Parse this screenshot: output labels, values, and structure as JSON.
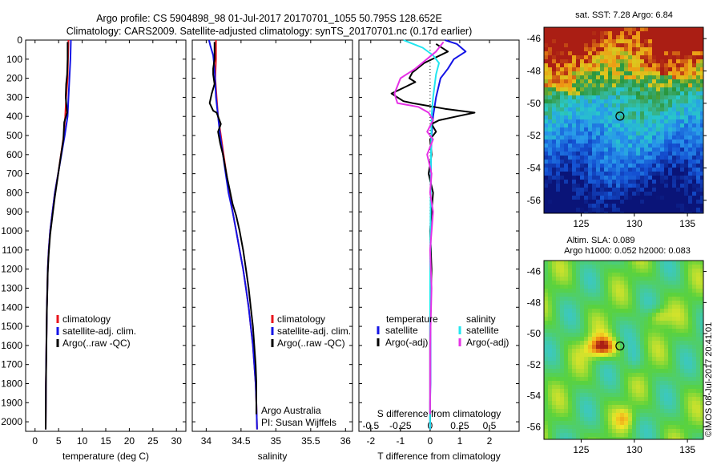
{
  "header": {
    "line1": "Argo profile: CS 5904898_98 01-Jul-2017 20170701_1055 50.795S 128.652E",
    "line2": "Climatology: CARS2009. Satellite-adjusted climatology: synTS_20170701.nc (0.17d earlier)"
  },
  "credit": "©IMOS 08-Jul-2017 20:41:01",
  "colors": {
    "climatology": "#e8141c",
    "satellite": "#1414e6",
    "argo": "#000000",
    "satellite_s": "#22e6f0",
    "argo_s": "#e632e6"
  },
  "chart_data": [
    {
      "type": "line",
      "name": "temperature-profile",
      "xlabel": "temperature (deg C)",
      "ylabel": "",
      "xlim": [
        -2,
        32
      ],
      "ylim": [
        2050,
        0
      ],
      "xticks": [
        0,
        5,
        10,
        15,
        20,
        25,
        30
      ],
      "yticks": [
        0,
        100,
        200,
        300,
        400,
        500,
        600,
        700,
        800,
        900,
        1000,
        1100,
        1200,
        1300,
        1400,
        1500,
        1600,
        1700,
        1800,
        1900,
        2000
      ],
      "legend": {
        "entries": [
          "climatology",
          "satellite-adj. clim.",
          "Argo(..raw -QC)"
        ],
        "placement": "lower-left"
      },
      "series": [
        {
          "name": "climatology",
          "color": "#e8141c",
          "x": [
            7.1,
            7.0,
            6.9,
            6.6,
            6.4,
            6.1,
            5.5,
            4.9,
            4.2,
            3.7,
            3.2,
            2.9,
            2.7,
            2.6,
            2.5,
            2.45,
            2.4,
            2.35,
            2.3,
            2.28,
            2.25
          ],
          "y": [
            0,
            100,
            200,
            300,
            400,
            500,
            600,
            700,
            800,
            900,
            1000,
            1100,
            1200,
            1300,
            1400,
            1500,
            1600,
            1700,
            1800,
            1900,
            2040
          ]
        },
        {
          "name": "satellite-adj. clim.",
          "color": "#1414e6",
          "x": [
            7.6,
            7.5,
            7.3,
            7.1,
            6.9,
            6.3,
            5.6,
            4.9,
            4.2,
            3.7,
            3.2,
            2.9,
            2.7,
            2.6,
            2.5,
            2.45,
            2.4,
            2.35,
            2.3,
            2.28,
            2.25
          ],
          "y": [
            0,
            100,
            200,
            300,
            400,
            500,
            600,
            700,
            800,
            900,
            1000,
            1100,
            1200,
            1300,
            1400,
            1500,
            1600,
            1700,
            1800,
            1900,
            2040
          ]
        },
        {
          "name": "Argo(..raw -QC)",
          "color": "#000000",
          "x": [
            6.9,
            6.9,
            6.8,
            6.6,
            6.5,
            6.8,
            6.2,
            6.0,
            5.4,
            4.8,
            4.2,
            3.7,
            3.2,
            2.9,
            2.7,
            2.6,
            2.5,
            2.45,
            2.4,
            2.35,
            2.3,
            2.28,
            2.25
          ],
          "y": [
            10,
            100,
            180,
            230,
            300,
            380,
            430,
            520,
            620,
            720,
            820,
            920,
            1020,
            1120,
            1220,
            1320,
            1420,
            1520,
            1620,
            1720,
            1820,
            1920,
            2040
          ]
        }
      ]
    },
    {
      "type": "line",
      "name": "salinity-profile",
      "xlabel": "salinity",
      "xlim": [
        33.8,
        36.1
      ],
      "ylim": [
        2050,
        0
      ],
      "xticks": [
        34,
        34.5,
        35,
        35.5,
        36
      ],
      "legend": {
        "entries": [
          "climatology",
          "satellite-adj. clim.",
          "Argo(..raw -QC)"
        ],
        "placement": "lower-right"
      },
      "annotation": [
        "Argo Australia",
        "PI: Susan Wijffels"
      ],
      "series": [
        {
          "name": "climatology",
          "color": "#e8141c",
          "x": [
            34.14,
            34.14,
            34.13,
            34.15,
            34.17,
            34.21,
            34.25,
            34.29,
            34.33,
            34.38,
            34.43,
            34.48,
            34.53,
            34.57,
            34.61,
            34.64,
            34.67,
            34.69,
            34.71,
            34.72,
            34.73
          ],
          "y": [
            0,
            100,
            200,
            300,
            400,
            500,
            600,
            700,
            800,
            900,
            1000,
            1100,
            1200,
            1300,
            1400,
            1500,
            1600,
            1700,
            1800,
            1900,
            2040
          ]
        },
        {
          "name": "satellite-adj. clim.",
          "color": "#1414e6",
          "x": [
            34.04,
            34.06,
            34.1,
            34.12,
            34.14,
            34.2,
            34.24,
            34.28,
            34.32,
            34.38,
            34.43,
            34.48,
            34.53,
            34.57,
            34.61,
            34.64,
            34.67,
            34.69,
            34.71,
            34.72,
            34.73
          ],
          "y": [
            0,
            30,
            80,
            150,
            300,
            500,
            600,
            700,
            800,
            900,
            1000,
            1100,
            1200,
            1300,
            1400,
            1500,
            1600,
            1700,
            1800,
            1900,
            2040
          ]
        },
        {
          "name": "Argo(..raw -QC)",
          "color": "#000000",
          "x": [
            34.12,
            34.12,
            34.1,
            34.1,
            34.12,
            34.08,
            34.05,
            34.1,
            34.15,
            34.21,
            34.17,
            34.2,
            34.24,
            34.27,
            34.3,
            34.34,
            34.38,
            34.43,
            34.48,
            34.53,
            34.57,
            34.61,
            34.64,
            34.67,
            34.69,
            34.71,
            34.72,
            34.72
          ],
          "y": [
            10,
            100,
            150,
            180,
            230,
            280,
            330,
            370,
            380,
            440,
            480,
            540,
            600,
            660,
            720,
            790,
            860,
            920,
            1000,
            1100,
            1200,
            1300,
            1400,
            1500,
            1600,
            1700,
            1800,
            1960
          ]
        }
      ]
    },
    {
      "type": "line",
      "name": "difference-profile",
      "xlabel": "T difference from climatology",
      "xlabel_top": "S difference from climatology",
      "xlim": [
        -2.4,
        3.0
      ],
      "ylim": [
        2050,
        0
      ],
      "xticks": [
        -2,
        -1,
        0,
        1,
        2
      ],
      "xticks_s": [
        -0.5,
        -0.25,
        0,
        0.25,
        0.5
      ],
      "xticks_s_labels": [
        "-0.5",
        "-0.25",
        "0",
        "0.25",
        "0.5"
      ],
      "legend": {
        "temperature_title": "temperature",
        "salinity_title": "salinity",
        "entries": [
          "satellite",
          "Argo(-adj)",
          "satellite",
          "Argo(-adj)"
        ],
        "placement": "lower-center"
      },
      "series": [
        {
          "name": "satellite",
          "quantity": "temperature",
          "color": "#1414e6",
          "x": [
            0.5,
            0.9,
            1.2,
            0.8,
            0.6,
            0.35,
            0.2,
            0.1,
            0.05,
            0.03,
            0.02,
            0.02,
            0.02,
            0.01,
            0.01,
            0.01,
            0.0,
            0.0,
            0.0
          ],
          "y": [
            0,
            20,
            60,
            100,
            150,
            200,
            300,
            400,
            500,
            600,
            800,
            1000,
            1200,
            1400,
            1600,
            1800,
            1900,
            2000,
            2040
          ]
        },
        {
          "name": "Argo(-adj)",
          "quantity": "temperature",
          "color": "#000000",
          "x": [
            0.2,
            0.6,
            -0.2,
            -0.6,
            -0.7,
            -0.5,
            -1.3,
            -0.9,
            -0.6,
            0.5,
            1.5,
            0.9,
            0.3,
            0.05,
            0.2,
            0.0,
            0.05,
            -0.05,
            0.1,
            0.0,
            0.05,
            0.0,
            0.0,
            0.0
          ],
          "y": [
            20,
            60,
            120,
            170,
            200,
            220,
            280,
            320,
            330,
            360,
            380,
            400,
            420,
            440,
            480,
            520,
            600,
            700,
            800,
            1000,
            1200,
            1500,
            1800,
            2000
          ]
        },
        {
          "name": "satellite",
          "quantity": "salinity",
          "color": "#22e6f0",
          "x": [
            -0.9,
            -0.25,
            0.1,
            0.3,
            0.2,
            0.1,
            0.05,
            0.03,
            0.02,
            0.01,
            0.0,
            0.0,
            0.0
          ],
          "y": [
            0,
            40,
            80,
            120,
            180,
            300,
            400,
            600,
            800,
            1000,
            1300,
            1700,
            2040
          ]
        },
        {
          "name": "Argo(-adj)",
          "quantity": "salinity",
          "color": "#e632e6",
          "x": [
            0.45,
            0.2,
            -0.5,
            -1.0,
            -1.2,
            -1.1,
            -0.4,
            -0.05,
            0.1,
            -0.1,
            0.1,
            -0.1,
            0.05,
            0.0,
            0.1,
            0.0,
            0.05,
            0.0,
            0.0
          ],
          "y": [
            10,
            60,
            150,
            200,
            280,
            330,
            350,
            380,
            420,
            480,
            520,
            600,
            700,
            800,
            900,
            1100,
            1300,
            1600,
            1960
          ]
        }
      ]
    },
    {
      "type": "heatmap",
      "name": "sst-map",
      "title": "sat. SST: 7.28 Argo: 6.84",
      "xlim": [
        121.5,
        136.5
      ],
      "ylim": [
        -56.8,
        -45.3
      ],
      "xticks": [
        125,
        130,
        135
      ],
      "yticks": [
        -46,
        -48,
        -50,
        -52,
        -54,
        -56
      ],
      "marker": {
        "lon": 128.652,
        "lat": -50.795
      },
      "legend": {
        "placement": "none"
      }
    },
    {
      "type": "heatmap",
      "name": "sla-map",
      "title_line1": "Altim. SLA: 0.089",
      "title_line2": "Argo h1000: 0.052 h2000: 0.083",
      "xlim": [
        121.5,
        136.5
      ],
      "ylim": [
        -56.8,
        -45.3
      ],
      "xticks": [
        125,
        130,
        135
      ],
      "yticks": [
        -46,
        -48,
        -50,
        -52,
        -54,
        -56
      ],
      "marker": {
        "lon": 128.652,
        "lat": -50.795
      },
      "legend": {
        "placement": "none"
      }
    }
  ]
}
